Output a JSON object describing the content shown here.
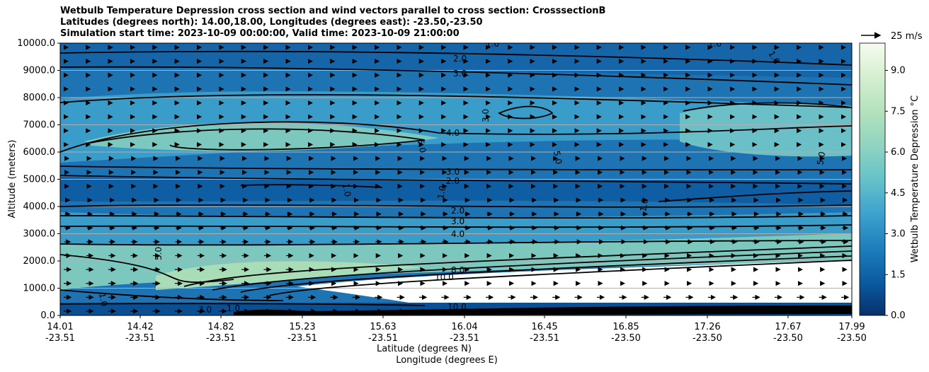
{
  "chart_data": {
    "type": "contour",
    "title_lines": [
      "Wetbulb Temperature Depression cross section and wind vectors parallel to cross section: CrosssectionB",
      "Latitudes (degrees north): 14.00,18.00, Longitudes (degrees east): -23.50,-23.50",
      "Simulation start time: 2023-10-09 00:00:00, Valid time: 2023-10-09 21:00:00"
    ],
    "ylabel": "Altitude (meters)",
    "xlabel": "Latitude (degrees N)",
    "xlabel2": "Longitude (degrees E)",
    "ylim": [
      0,
      10000
    ],
    "y_ticks": [
      "0.0",
      "1000.0",
      "2000.0",
      "3000.0",
      "4000.0",
      "5000.0",
      "6000.0",
      "7000.0",
      "8000.0",
      "9000.0",
      "10000.0"
    ],
    "x_ticks": [
      {
        "lat": "14.01",
        "lon": "-23.51"
      },
      {
        "lat": "14.42",
        "lon": "-23.51"
      },
      {
        "lat": "14.82",
        "lon": "-23.51"
      },
      {
        "lat": "15.23",
        "lon": "-23.51"
      },
      {
        "lat": "15.63",
        "lon": "-23.51"
      },
      {
        "lat": "16.04",
        "lon": "-23.51"
      },
      {
        "lat": "16.45",
        "lon": "-23.51"
      },
      {
        "lat": "16.85",
        "lon": "-23.50"
      },
      {
        "lat": "17.26",
        "lon": "-23.50"
      },
      {
        "lat": "17.67",
        "lon": "-23.50"
      },
      {
        "lat": "17.99",
        "lon": "-23.50"
      }
    ],
    "colorbar": {
      "label": "Wetbulb Temperature Depression °C",
      "range": [
        0,
        10
      ],
      "ticks": [
        "0.0",
        "1.5",
        "3.0",
        "4.5",
        "6.0",
        "7.5",
        "9.0"
      ]
    },
    "quiver_key": "25 m/s",
    "contour_levels": [
      1.0,
      2.0,
      3.0,
      4.0,
      5.0,
      6.0,
      7.0,
      8.0,
      9.0,
      10.0
    ],
    "contour_labels": [
      "1.0",
      "2.0",
      "3.0",
      "3.0",
      "4.0",
      "5.0",
      "5.0",
      "5.0",
      "3.0",
      "2.0",
      "1.0",
      "1.0",
      "2.0",
      "3.0",
      "4.0",
      "5.0",
      "1.0",
      "8.0",
      "10.0",
      "1.0",
      "3.0",
      "10.0",
      "1.0",
      "1.0",
      "1.0"
    ]
  }
}
